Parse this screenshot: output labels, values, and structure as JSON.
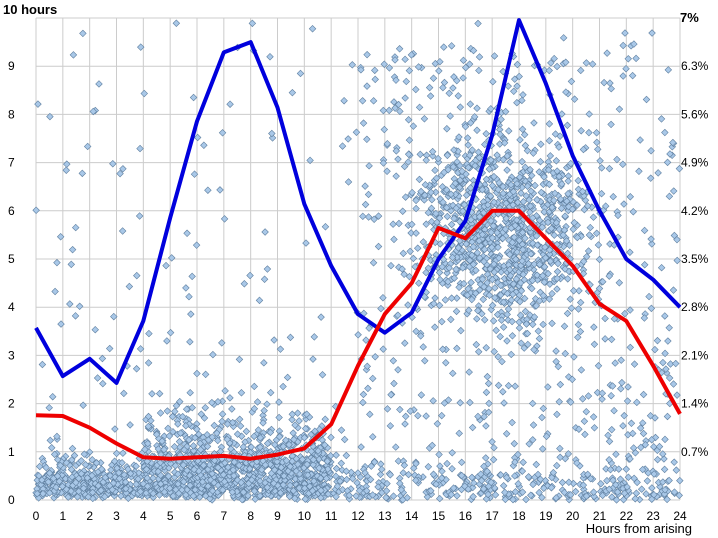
{
  "chart_data": {
    "type": "scatter",
    "title": "",
    "xlabel": "Hours from arising",
    "ylabel_left_top": "10 hours",
    "ylabel_right_top": "7%",
    "xlim": [
      0,
      24
    ],
    "ylim_left": [
      0,
      10
    ],
    "ylim_right": [
      0,
      7
    ],
    "x_ticks": [
      "0",
      "1",
      "2",
      "3",
      "4",
      "5",
      "6",
      "7",
      "8",
      "9",
      "10",
      "11",
      "12",
      "13",
      "14",
      "15",
      "16",
      "17",
      "18",
      "19",
      "20",
      "21",
      "22",
      "23",
      "24"
    ],
    "y_left_ticks": [
      "0",
      "1",
      "2",
      "3",
      "4",
      "5",
      "6",
      "7",
      "8",
      "9"
    ],
    "y_right_ticks": [
      "0.7%",
      "1.4%",
      "2.1%",
      "2.8%",
      "3.5%",
      "4.2%",
      "4.9%",
      "5.6%",
      "6.3%"
    ],
    "grid": true,
    "colors": {
      "points": "#a9c8e8",
      "point_edge": "#5f7f9f",
      "blue_line": "#0000dd",
      "red_line": "#ee0000",
      "grid": "#cccccc"
    },
    "series": [
      {
        "axis": "right",
        "color": "blue",
        "x": [
          0,
          1,
          2,
          3,
          4,
          5,
          6,
          7,
          8,
          9,
          10,
          11,
          12,
          13,
          14,
          15,
          16,
          17,
          18,
          19,
          20,
          21,
          22,
          23,
          24
        ],
        "values": [
          2.5,
          1.8,
          2.05,
          1.7,
          2.6,
          4.1,
          5.5,
          6.5,
          6.65,
          5.7,
          4.3,
          3.4,
          2.7,
          2.43,
          2.72,
          3.5,
          4.05,
          5.3,
          6.97,
          6.05,
          5.0,
          4.2,
          3.5,
          3.2,
          2.8
        ]
      },
      {
        "axis": "right",
        "color": "red",
        "x": [
          0,
          1,
          2,
          3,
          4,
          5,
          6,
          7,
          8,
          9,
          10,
          11,
          12,
          13,
          14,
          15,
          16,
          17,
          18,
          19,
          20,
          21,
          22,
          23,
          24
        ],
        "values": [
          1.23,
          1.22,
          1.05,
          0.82,
          0.62,
          0.6,
          0.62,
          0.64,
          0.6,
          0.66,
          0.75,
          1.1,
          1.95,
          2.7,
          3.15,
          3.95,
          3.8,
          4.2,
          4.2,
          3.8,
          3.4,
          2.85,
          2.6,
          1.95,
          1.25
        ]
      }
    ],
    "scatter_note_visible": false
  }
}
